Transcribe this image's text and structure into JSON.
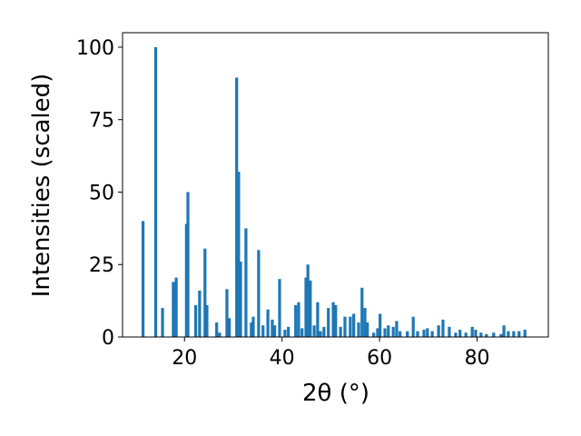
{
  "chart_data": {
    "type": "bar",
    "xlabel": "2θ (°)",
    "ylabel": "Intensities (scaled)",
    "color": "#1f77b4",
    "x": [
      11.5,
      14.1,
      15.5,
      17.7,
      18.3,
      20.4,
      20.7,
      22.3,
      23.1,
      24.2,
      24.6,
      26.6,
      27.2,
      28.7,
      29.2,
      30.7,
      31.1,
      31.5,
      32.6,
      33.7,
      34.1,
      35.2,
      36.1,
      37.1,
      38.0,
      38.5,
      39.5,
      40.6,
      41.3,
      42.8,
      43.4,
      44.1,
      44.9,
      45.3,
      45.8,
      46.6,
      47.3,
      47.9,
      48.6,
      49.5,
      50.5,
      51.0,
      52.0,
      52.9,
      54.0,
      54.7,
      55.7,
      56.4,
      57.0,
      57.5,
      58.8,
      59.6,
      60.1,
      61.1,
      61.8,
      62.8,
      63.5,
      64.2,
      65.7,
      66.9,
      67.8,
      69.1,
      69.8,
      70.8,
      72.1,
      73.0,
      74.3,
      75.6,
      76.5,
      77.7,
      79.0,
      79.7,
      80.8,
      81.9,
      83.4,
      84.9,
      85.5,
      86.4,
      87.5,
      88.6,
      89.8
    ],
    "values": [
      40,
      100,
      10,
      19,
      20.5,
      39,
      50,
      11,
      16,
      30.5,
      11,
      5,
      1.5,
      16.5,
      6.5,
      89.5,
      57,
      26,
      37.5,
      5,
      7,
      30,
      4,
      9.5,
      6,
      4,
      20,
      2.5,
      3.5,
      11,
      12,
      3,
      20.5,
      25,
      19.5,
      4,
      12,
      2,
      3.5,
      10,
      12,
      11,
      3.5,
      7,
      7,
      8,
      5,
      17,
      10,
      5,
      1.5,
      3,
      8,
      3,
      4,
      3.5,
      5.5,
      2,
      2,
      7,
      2,
      2.5,
      3,
      2,
      4,
      6,
      3.5,
      1.5,
      2.5,
      1.5,
      3.5,
      2.5,
      1.5,
      1,
      1.5,
      1,
      4,
      2,
      2,
      2,
      2.5
    ],
    "xlim": [
      7.3,
      94.6
    ],
    "ylim": [
      0,
      105
    ],
    "xticks": [
      20,
      40,
      60,
      80
    ],
    "yticks": [
      0,
      25,
      50,
      75,
      100
    ],
    "grid": false
  }
}
